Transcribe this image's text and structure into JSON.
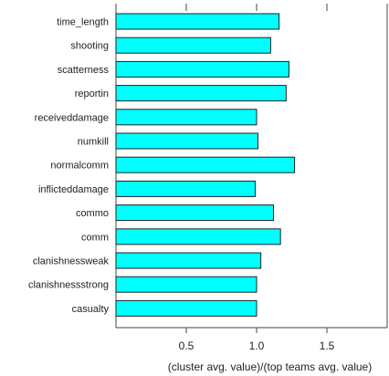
{
  "chart_data": {
    "type": "bar",
    "orientation": "horizontal",
    "title": "",
    "xlabel": "(cluster avg. value)/(top teams avg. value)",
    "ylabel": "",
    "xlim": [
      0,
      2
    ],
    "xticks": [
      0.5,
      1.0,
      1.5
    ],
    "xtick_labels": [
      "0.5",
      "1.0",
      "1.5"
    ],
    "grid": false,
    "bar_color": "#00ffff",
    "categories": [
      "time_length",
      "shooting",
      "scatterness",
      "reportin",
      "receiveddamage",
      "numkill",
      "normalcomm",
      "inflicteddamage",
      "commo",
      "comm",
      "clanishnessweak",
      "clanishnessstrong",
      "casualty"
    ],
    "values": [
      1.16,
      1.1,
      1.23,
      1.21,
      1.0,
      1.01,
      1.27,
      0.99,
      1.12,
      1.17,
      1.03,
      1.0,
      1.0
    ]
  }
}
